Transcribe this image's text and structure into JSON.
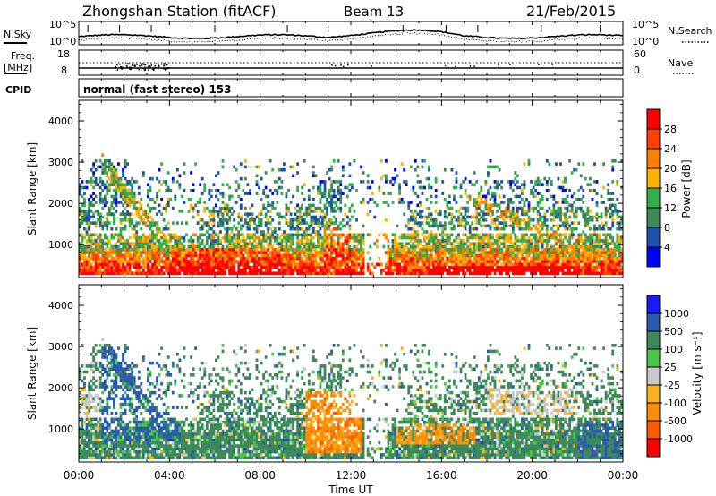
{
  "header": {
    "station": "Zhongshan Station (fitACF)",
    "beam": "Beam 13",
    "date": "21/Feb/2015"
  },
  "panels": {
    "nsky": {
      "left_label": "N.Sky",
      "left_ticks": [
        "10^5",
        "10^0"
      ],
      "right_ticks": [
        "10^5",
        "10^0"
      ],
      "right_label": "N.Search"
    },
    "freq": {
      "left_label_line1": "Freq.",
      "left_label_line2": "[MHz]",
      "left_ticks": [
        "18",
        "8"
      ],
      "right_ticks": [
        "60",
        "0"
      ],
      "right_label": "Nave"
    },
    "cpid": {
      "label": "CPID",
      "text": "normal (fast stereo) 153"
    }
  },
  "colors": {
    "power_scale": [
      "#0000ff",
      "#1f4fb0",
      "#3c8a5a",
      "#32b04a",
      "#ffb000",
      "#ff7f00",
      "#ff4000",
      "#ff0000"
    ],
    "velocity_scale": [
      "#ff0000",
      "#ff5a00",
      "#ff8c00",
      "#ffb020",
      "#c8c8c8",
      "#46c846",
      "#3c8a5a",
      "#2a5ab0",
      "#1a1aff"
    ]
  },
  "chart_data": [
    {
      "type": "heatmap",
      "name_hint": "power",
      "ylabel": "Slant Range [km]",
      "xlabel": "",
      "x_ticks": [
        "00:00",
        "04:00",
        "08:00",
        "12:00",
        "16:00",
        "20:00",
        "00:00"
      ],
      "y_ticks": [
        1000,
        2000,
        3000,
        4000
      ],
      "ylim": [
        200,
        4500
      ],
      "xlim_hours": [
        0,
        24
      ],
      "colorbar": {
        "label": "Power [dB]",
        "ticks": [
          "28",
          "24",
          "20",
          "16",
          "12",
          "8",
          "4"
        ]
      }
    },
    {
      "type": "heatmap",
      "name_hint": "velocity",
      "ylabel": "Slant Range [km]",
      "xlabel": "Time UT",
      "x_ticks": [
        "00:00",
        "04:00",
        "08:00",
        "12:00",
        "16:00",
        "20:00",
        "00:00"
      ],
      "y_ticks": [
        1000,
        2000,
        3000,
        4000
      ],
      "ylim": [
        200,
        4500
      ],
      "xlim_hours": [
        0,
        24
      ],
      "colorbar": {
        "label": "Velocity [m s⁻¹]",
        "ticks": [
          "1000",
          "500",
          "100",
          "25",
          "-25",
          "-100",
          "-500",
          "-1000"
        ]
      }
    }
  ]
}
